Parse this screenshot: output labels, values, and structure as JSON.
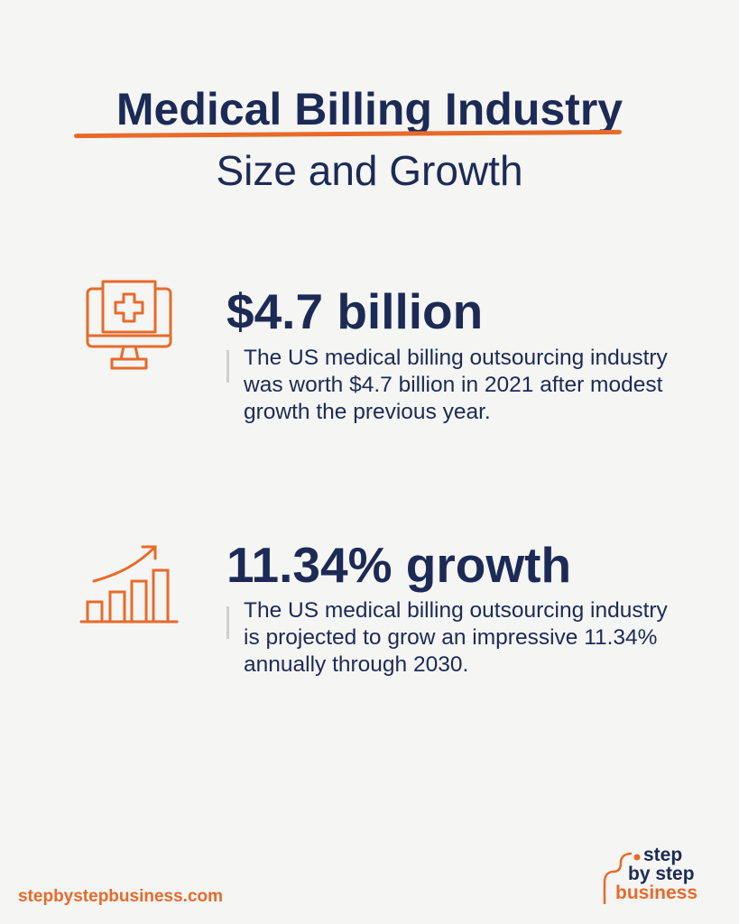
{
  "header": {
    "title_line1": "Medical Billing Industry",
    "title_line2": "Size and Growth"
  },
  "stats": [
    {
      "icon": "medical-monitor-icon",
      "headline": "$4.7 billion",
      "description": "The US medical billing outsourcing industry was worth $4.7 billion in 2021 after modest growth the previous year."
    },
    {
      "icon": "growth-chart-icon",
      "headline": "11.34% growth",
      "description": "The US medical billing outsourcing industry is projected to grow an impressive 11.34% annually through 2030."
    }
  ],
  "footer": {
    "url": "stepbystepbusiness.com",
    "logo": {
      "line1": "step",
      "line2": "by step",
      "line3": "business"
    }
  },
  "colors": {
    "accent": "#e86a2a",
    "navy": "#1c2a55",
    "background": "#f5f5f4"
  }
}
